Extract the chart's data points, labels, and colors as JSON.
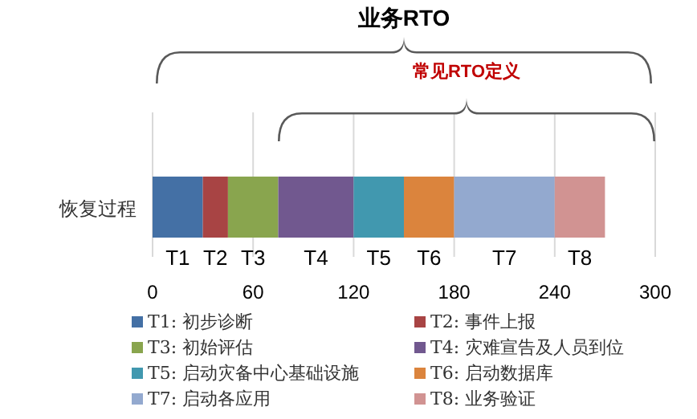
{
  "chart_data": {
    "type": "bar",
    "orientation": "horizontal",
    "stacked": true,
    "categories": [
      "恢复过程"
    ],
    "series": [
      {
        "name": "T1: 初步诊断",
        "color": "#4470a5",
        "values": [
          30
        ]
      },
      {
        "name": "T2: 事件上报",
        "color": "#a84444",
        "values": [
          15
        ]
      },
      {
        "name": "T3: 初始评估",
        "color": "#89a54e",
        "values": [
          30
        ]
      },
      {
        "name": "T4: 灾难宣告及人员到位",
        "color": "#71588f",
        "values": [
          45
        ]
      },
      {
        "name": "T5: 启动灾备中心基础设施",
        "color": "#4198af",
        "values": [
          30
        ]
      },
      {
        "name": "T6: 启动数据库",
        "color": "#db843d",
        "values": [
          30
        ]
      },
      {
        "name": "T7: 启动各应用",
        "color": "#93a9cf",
        "values": [
          60
        ]
      },
      {
        "name": "T8: 业务验证",
        "color": "#d19392",
        "values": [
          30
        ]
      }
    ],
    "xlim": [
      0,
      300
    ],
    "xticks": [
      0,
      60,
      120,
      180,
      240,
      300
    ],
    "grid": "x",
    "legend": "bottom",
    "annotations": [
      "业务RTO",
      "常见RTO定义",
      "T1",
      "T2",
      "T3",
      "T4",
      "T5",
      "T6",
      "T7",
      "T8"
    ]
  }
}
